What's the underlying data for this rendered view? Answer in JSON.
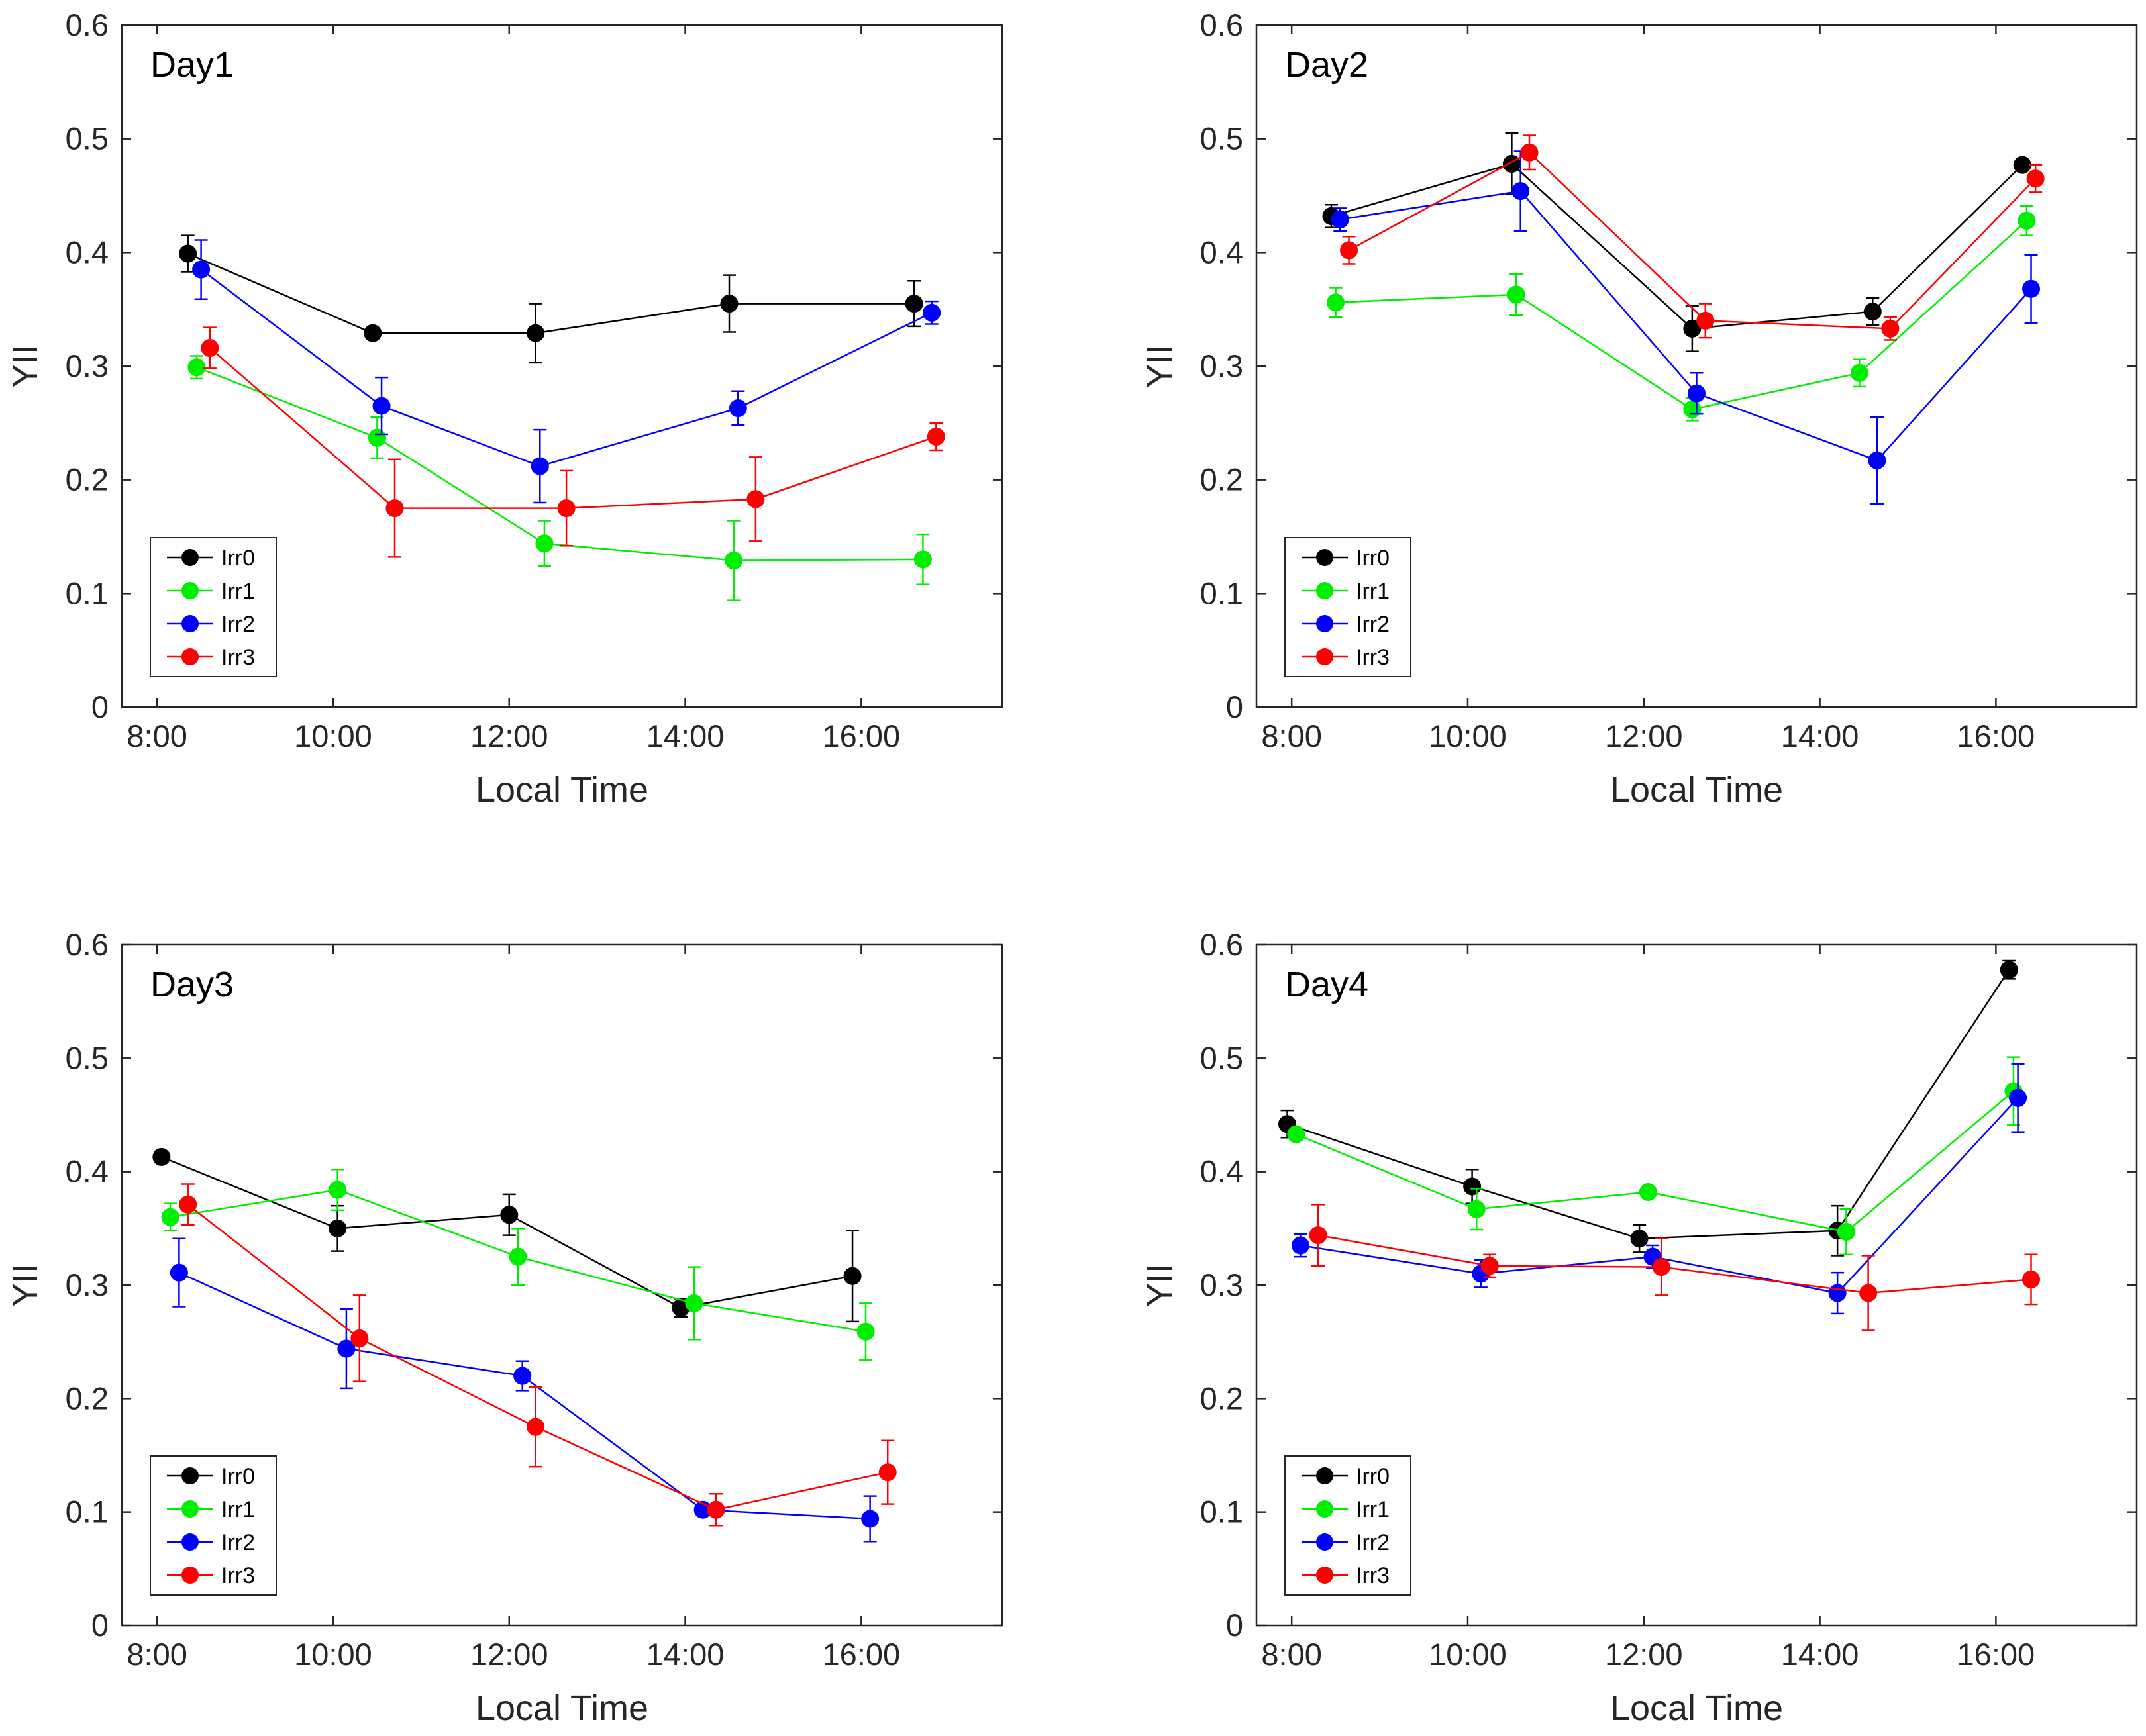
{
  "chart_data": [
    {
      "type": "line",
      "title": "Day1",
      "xlabel": "Local Time",
      "ylabel": "YII",
      "xlim": [
        7.6,
        17.6
      ],
      "ylim": [
        0,
        0.6
      ],
      "x_ticks": [
        8,
        10,
        12,
        14,
        16
      ],
      "x_tick_labels": [
        "8:00",
        "10:00",
        "12:00",
        "14:00",
        "16:00"
      ],
      "y_ticks": [
        0,
        0.1,
        0.2,
        0.3,
        0.4,
        0.5,
        0.6
      ],
      "y_tick_labels": [
        "0",
        "0.1",
        "0.2",
        "0.3",
        "0.4",
        "0.5",
        "0.6"
      ],
      "legend_position": "lower-left",
      "series": [
        {
          "name": "Irr0",
          "color": "#000000",
          "x": [
            8.35,
            10.45,
            12.3,
            14.5,
            16.6
          ],
          "values": [
            0.399,
            0.329,
            0.329,
            0.355,
            0.355
          ],
          "errors": [
            0.016,
            0.0,
            0.026,
            0.025,
            0.02
          ]
        },
        {
          "name": "Irr1",
          "color": "#00ee00",
          "x": [
            8.45,
            10.5,
            12.4,
            14.55,
            16.7
          ],
          "values": [
            0.299,
            0.237,
            0.144,
            0.129,
            0.13
          ],
          "errors": [
            0.01,
            0.018,
            0.02,
            0.035,
            0.022
          ]
        },
        {
          "name": "Irr2",
          "color": "#0000ff",
          "x": [
            8.5,
            10.55,
            12.35,
            14.6,
            16.8
          ],
          "values": [
            0.385,
            0.265,
            0.212,
            0.263,
            0.347
          ],
          "errors": [
            0.026,
            0.025,
            0.032,
            0.015,
            0.01
          ]
        },
        {
          "name": "Irr3",
          "color": "#ff0000",
          "x": [
            8.6,
            10.7,
            12.65,
            14.8,
            16.85
          ],
          "values": [
            0.316,
            0.175,
            0.175,
            0.183,
            0.238
          ],
          "errors": [
            0.018,
            0.043,
            0.033,
            0.037,
            0.012
          ]
        }
      ]
    },
    {
      "type": "line",
      "title": "Day2",
      "xlabel": "Local Time",
      "ylabel": "YII",
      "xlim": [
        7.6,
        17.6
      ],
      "ylim": [
        0,
        0.6
      ],
      "x_ticks": [
        8,
        10,
        12,
        14,
        16
      ],
      "x_tick_labels": [
        "8:00",
        "10:00",
        "12:00",
        "14:00",
        "16:00"
      ],
      "y_ticks": [
        0,
        0.1,
        0.2,
        0.3,
        0.4,
        0.5,
        0.6
      ],
      "y_tick_labels": [
        "0",
        "0.1",
        "0.2",
        "0.3",
        "0.4",
        "0.5",
        "0.6"
      ],
      "legend_position": "lower-left",
      "series": [
        {
          "name": "Irr0",
          "color": "#000000",
          "x": [
            8.45,
            10.5,
            12.55,
            14.6,
            16.3
          ],
          "values": [
            0.432,
            0.478,
            0.333,
            0.348,
            0.477
          ],
          "errors": [
            0.01,
            0.027,
            0.02,
            0.012,
            0.005
          ]
        },
        {
          "name": "Irr1",
          "color": "#00ee00",
          "x": [
            8.5,
            10.55,
            12.55,
            14.45,
            16.35
          ],
          "values": [
            0.356,
            0.363,
            0.262,
            0.294,
            0.428
          ],
          "errors": [
            0.013,
            0.018,
            0.01,
            0.012,
            0.013
          ]
        },
        {
          "name": "Irr2",
          "color": "#0000ff",
          "x": [
            8.55,
            10.6,
            12.6,
            14.65,
            16.4
          ],
          "values": [
            0.429,
            0.454,
            0.276,
            0.217,
            0.368
          ],
          "errors": [
            0.01,
            0.035,
            0.018,
            0.038,
            0.03
          ]
        },
        {
          "name": "Irr3",
          "color": "#ff0000",
          "x": [
            8.65,
            10.7,
            12.7,
            14.8,
            16.45
          ],
          "values": [
            0.402,
            0.488,
            0.34,
            0.333,
            0.465
          ],
          "errors": [
            0.012,
            0.015,
            0.015,
            0.01,
            0.012
          ]
        }
      ]
    },
    {
      "type": "line",
      "title": "Day3",
      "xlabel": "Local Time",
      "ylabel": "YII",
      "xlim": [
        7.6,
        17.6
      ],
      "ylim": [
        0,
        0.6
      ],
      "x_ticks": [
        8,
        10,
        12,
        14,
        16
      ],
      "x_tick_labels": [
        "8:00",
        "10:00",
        "12:00",
        "14:00",
        "16:00"
      ],
      "y_ticks": [
        0,
        0.1,
        0.2,
        0.3,
        0.4,
        0.5,
        0.6
      ],
      "y_tick_labels": [
        "0",
        "0.1",
        "0.2",
        "0.3",
        "0.4",
        "0.5",
        "0.6"
      ],
      "legend_position": "lower-left",
      "series": [
        {
          "name": "Irr0",
          "color": "#000000",
          "x": [
            8.05,
            10.05,
            12.0,
            13.95,
            15.9
          ],
          "values": [
            0.413,
            0.35,
            0.362,
            0.28,
            0.308
          ],
          "errors": [
            0.005,
            0.02,
            0.018,
            0.008,
            0.04
          ]
        },
        {
          "name": "Irr1",
          "color": "#00ee00",
          "x": [
            8.15,
            10.05,
            12.1,
            14.1,
            16.05
          ],
          "values": [
            0.36,
            0.384,
            0.325,
            0.284,
            0.259
          ],
          "errors": [
            0.012,
            0.018,
            0.025,
            0.032,
            0.025
          ]
        },
        {
          "name": "Irr2",
          "color": "#0000ff",
          "x": [
            8.25,
            10.15,
            12.15,
            14.2,
            16.1
          ],
          "values": [
            0.311,
            0.244,
            0.22,
            0.102,
            0.094
          ],
          "errors": [
            0.03,
            0.035,
            0.013,
            0.0,
            0.02
          ]
        },
        {
          "name": "Irr3",
          "color": "#ff0000",
          "x": [
            8.35,
            10.3,
            12.3,
            14.35,
            16.3
          ],
          "values": [
            0.371,
            0.253,
            0.175,
            0.102,
            0.135
          ],
          "errors": [
            0.018,
            0.038,
            0.035,
            0.014,
            0.028
          ]
        }
      ]
    },
    {
      "type": "line",
      "title": "Day4",
      "xlabel": "Local Time",
      "ylabel": "YII",
      "xlim": [
        7.6,
        17.6
      ],
      "ylim": [
        0,
        0.6
      ],
      "x_ticks": [
        8,
        10,
        12,
        14,
        16
      ],
      "x_tick_labels": [
        "8:00",
        "10:00",
        "12:00",
        "14:00",
        "16:00"
      ],
      "y_ticks": [
        0,
        0.1,
        0.2,
        0.3,
        0.4,
        0.5,
        0.6
      ],
      "y_tick_labels": [
        "0",
        "0.1",
        "0.2",
        "0.3",
        "0.4",
        "0.5",
        "0.6"
      ],
      "legend_position": "lower-left",
      "series": [
        {
          "name": "Irr0",
          "color": "#000000",
          "x": [
            7.95,
            10.05,
            11.95,
            14.2,
            16.15
          ],
          "values": [
            0.442,
            0.387,
            0.341,
            0.348,
            0.578
          ],
          "errors": [
            0.012,
            0.015,
            0.012,
            0.022,
            0.008
          ]
        },
        {
          "name": "Irr1",
          "color": "#00ee00",
          "x": [
            8.05,
            10.1,
            12.05,
            14.3,
            16.2
          ],
          "values": [
            0.433,
            0.367,
            0.382,
            0.347,
            0.471
          ],
          "errors": [
            0.005,
            0.018,
            0.005,
            0.02,
            0.03
          ]
        },
        {
          "name": "Irr2",
          "color": "#0000ff",
          "x": [
            8.1,
            10.15,
            12.1,
            14.2,
            16.25
          ],
          "values": [
            0.335,
            0.31,
            0.325,
            0.293,
            0.465
          ],
          "errors": [
            0.01,
            0.012,
            0.01,
            0.018,
            0.03
          ]
        },
        {
          "name": "Irr3",
          "color": "#ff0000",
          "x": [
            8.3,
            10.25,
            12.2,
            14.55,
            16.4
          ],
          "values": [
            0.344,
            0.317,
            0.316,
            0.293,
            0.305
          ],
          "errors": [
            0.027,
            0.01,
            0.025,
            0.033,
            0.022
          ]
        }
      ]
    }
  ]
}
